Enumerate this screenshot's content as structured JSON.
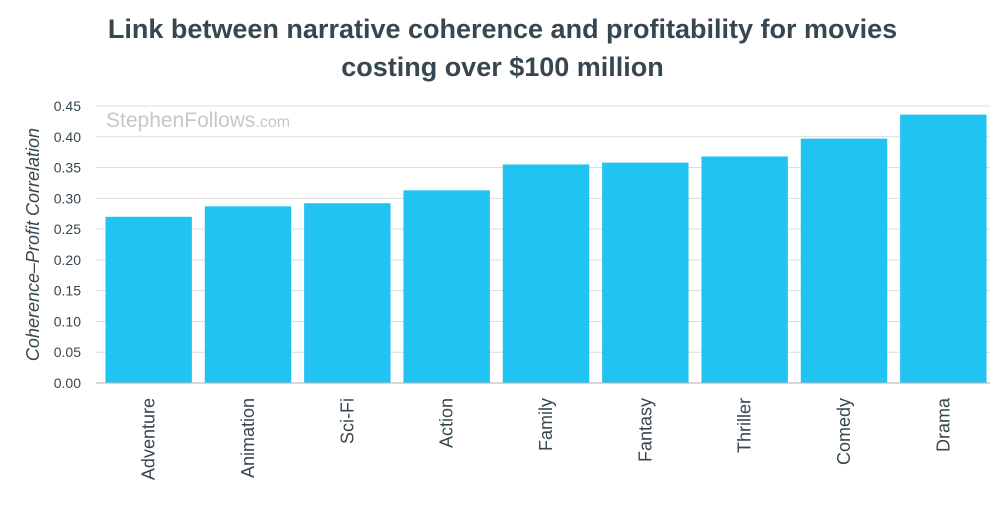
{
  "title_lines": [
    "Link between narrative coherence and profitability for movies",
    "costing over $100 million"
  ],
  "watermark": {
    "name": "StephenFollows",
    "domain": ".com"
  },
  "colors": {
    "bar": "#21c3f3",
    "grid": "#dcdcdc",
    "text": "#37474f",
    "axis": "#b0b0b0"
  },
  "chart_data": {
    "type": "bar",
    "title": "Link between narrative coherence and profitability for movies costing over $100 million",
    "xlabel": "",
    "ylabel": "Coherence–Profit Correlation",
    "categories": [
      "Adventure",
      "Animation",
      "Sci-Fi",
      "Action",
      "Family",
      "Fantasy",
      "Thriller",
      "Comedy",
      "Drama"
    ],
    "values": [
      0.27,
      0.287,
      0.292,
      0.313,
      0.355,
      0.358,
      0.368,
      0.397,
      0.436
    ],
    "ylim": [
      0,
      0.45
    ],
    "yticks": [
      "0.00",
      "0.05",
      "0.10",
      "0.15",
      "0.20",
      "0.25",
      "0.30",
      "0.35",
      "0.40",
      "0.45"
    ],
    "grid": true,
    "legend": "none"
  }
}
